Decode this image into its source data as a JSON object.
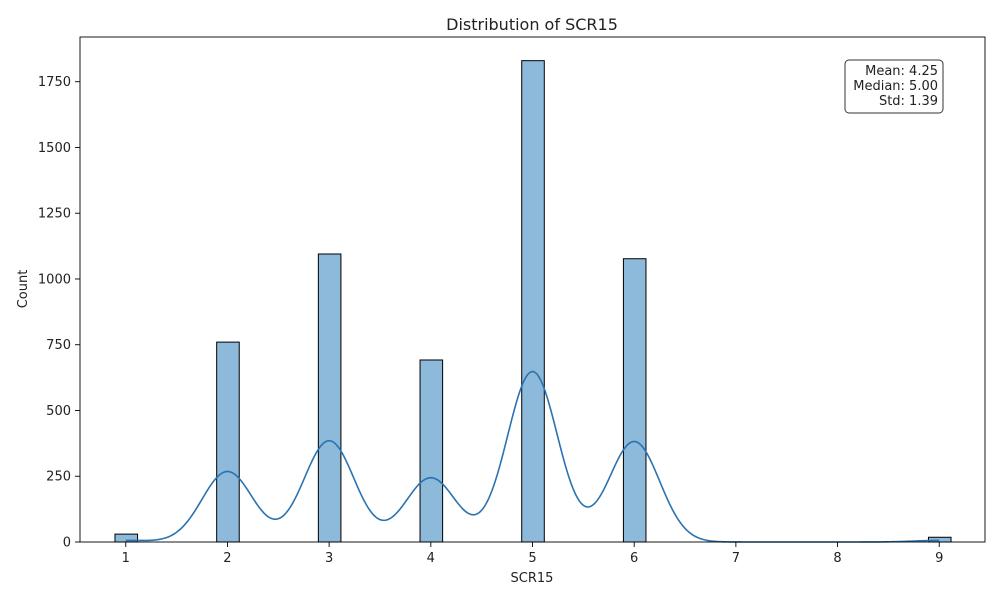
{
  "chart_data": {
    "type": "bar",
    "title": "Distribution of SCR15",
    "xlabel": "SCR15",
    "ylabel": "Count",
    "xlim": [
      0.55,
      9.45
    ],
    "ylim": [
      0,
      1920
    ],
    "xticks": [
      1,
      2,
      3,
      4,
      5,
      6,
      7,
      8,
      9
    ],
    "yticks": [
      0,
      250,
      500,
      750,
      1000,
      1250,
      1500,
      1750
    ],
    "bar_width": 0.222,
    "bars": [
      {
        "x": 1,
        "value": 30
      },
      {
        "x": 2,
        "value": 760
      },
      {
        "x": 3,
        "value": 1095
      },
      {
        "x": 4,
        "value": 692
      },
      {
        "x": 5,
        "value": 1830
      },
      {
        "x": 6,
        "value": 1077
      },
      {
        "x": 9,
        "value": 18
      }
    ],
    "kde": {
      "peaks": [
        {
          "x": 1,
          "height": 6
        },
        {
          "x": 2,
          "height": 268
        },
        {
          "x": 3,
          "height": 385
        },
        {
          "x": 4,
          "height": 244
        },
        {
          "x": 5,
          "height": 648
        },
        {
          "x": 6,
          "height": 382
        },
        {
          "x": 9,
          "height": 6
        }
      ],
      "bandwidth": 0.25
    },
    "grid": false,
    "colors": {
      "bar_fill": "#8db9da",
      "bar_edge": "#000000",
      "kde_line": "#2b73b0"
    }
  },
  "stats_box": {
    "mean": "Mean: 4.25",
    "median": "Median: 5.00",
    "std": "Std: 1.39"
  }
}
